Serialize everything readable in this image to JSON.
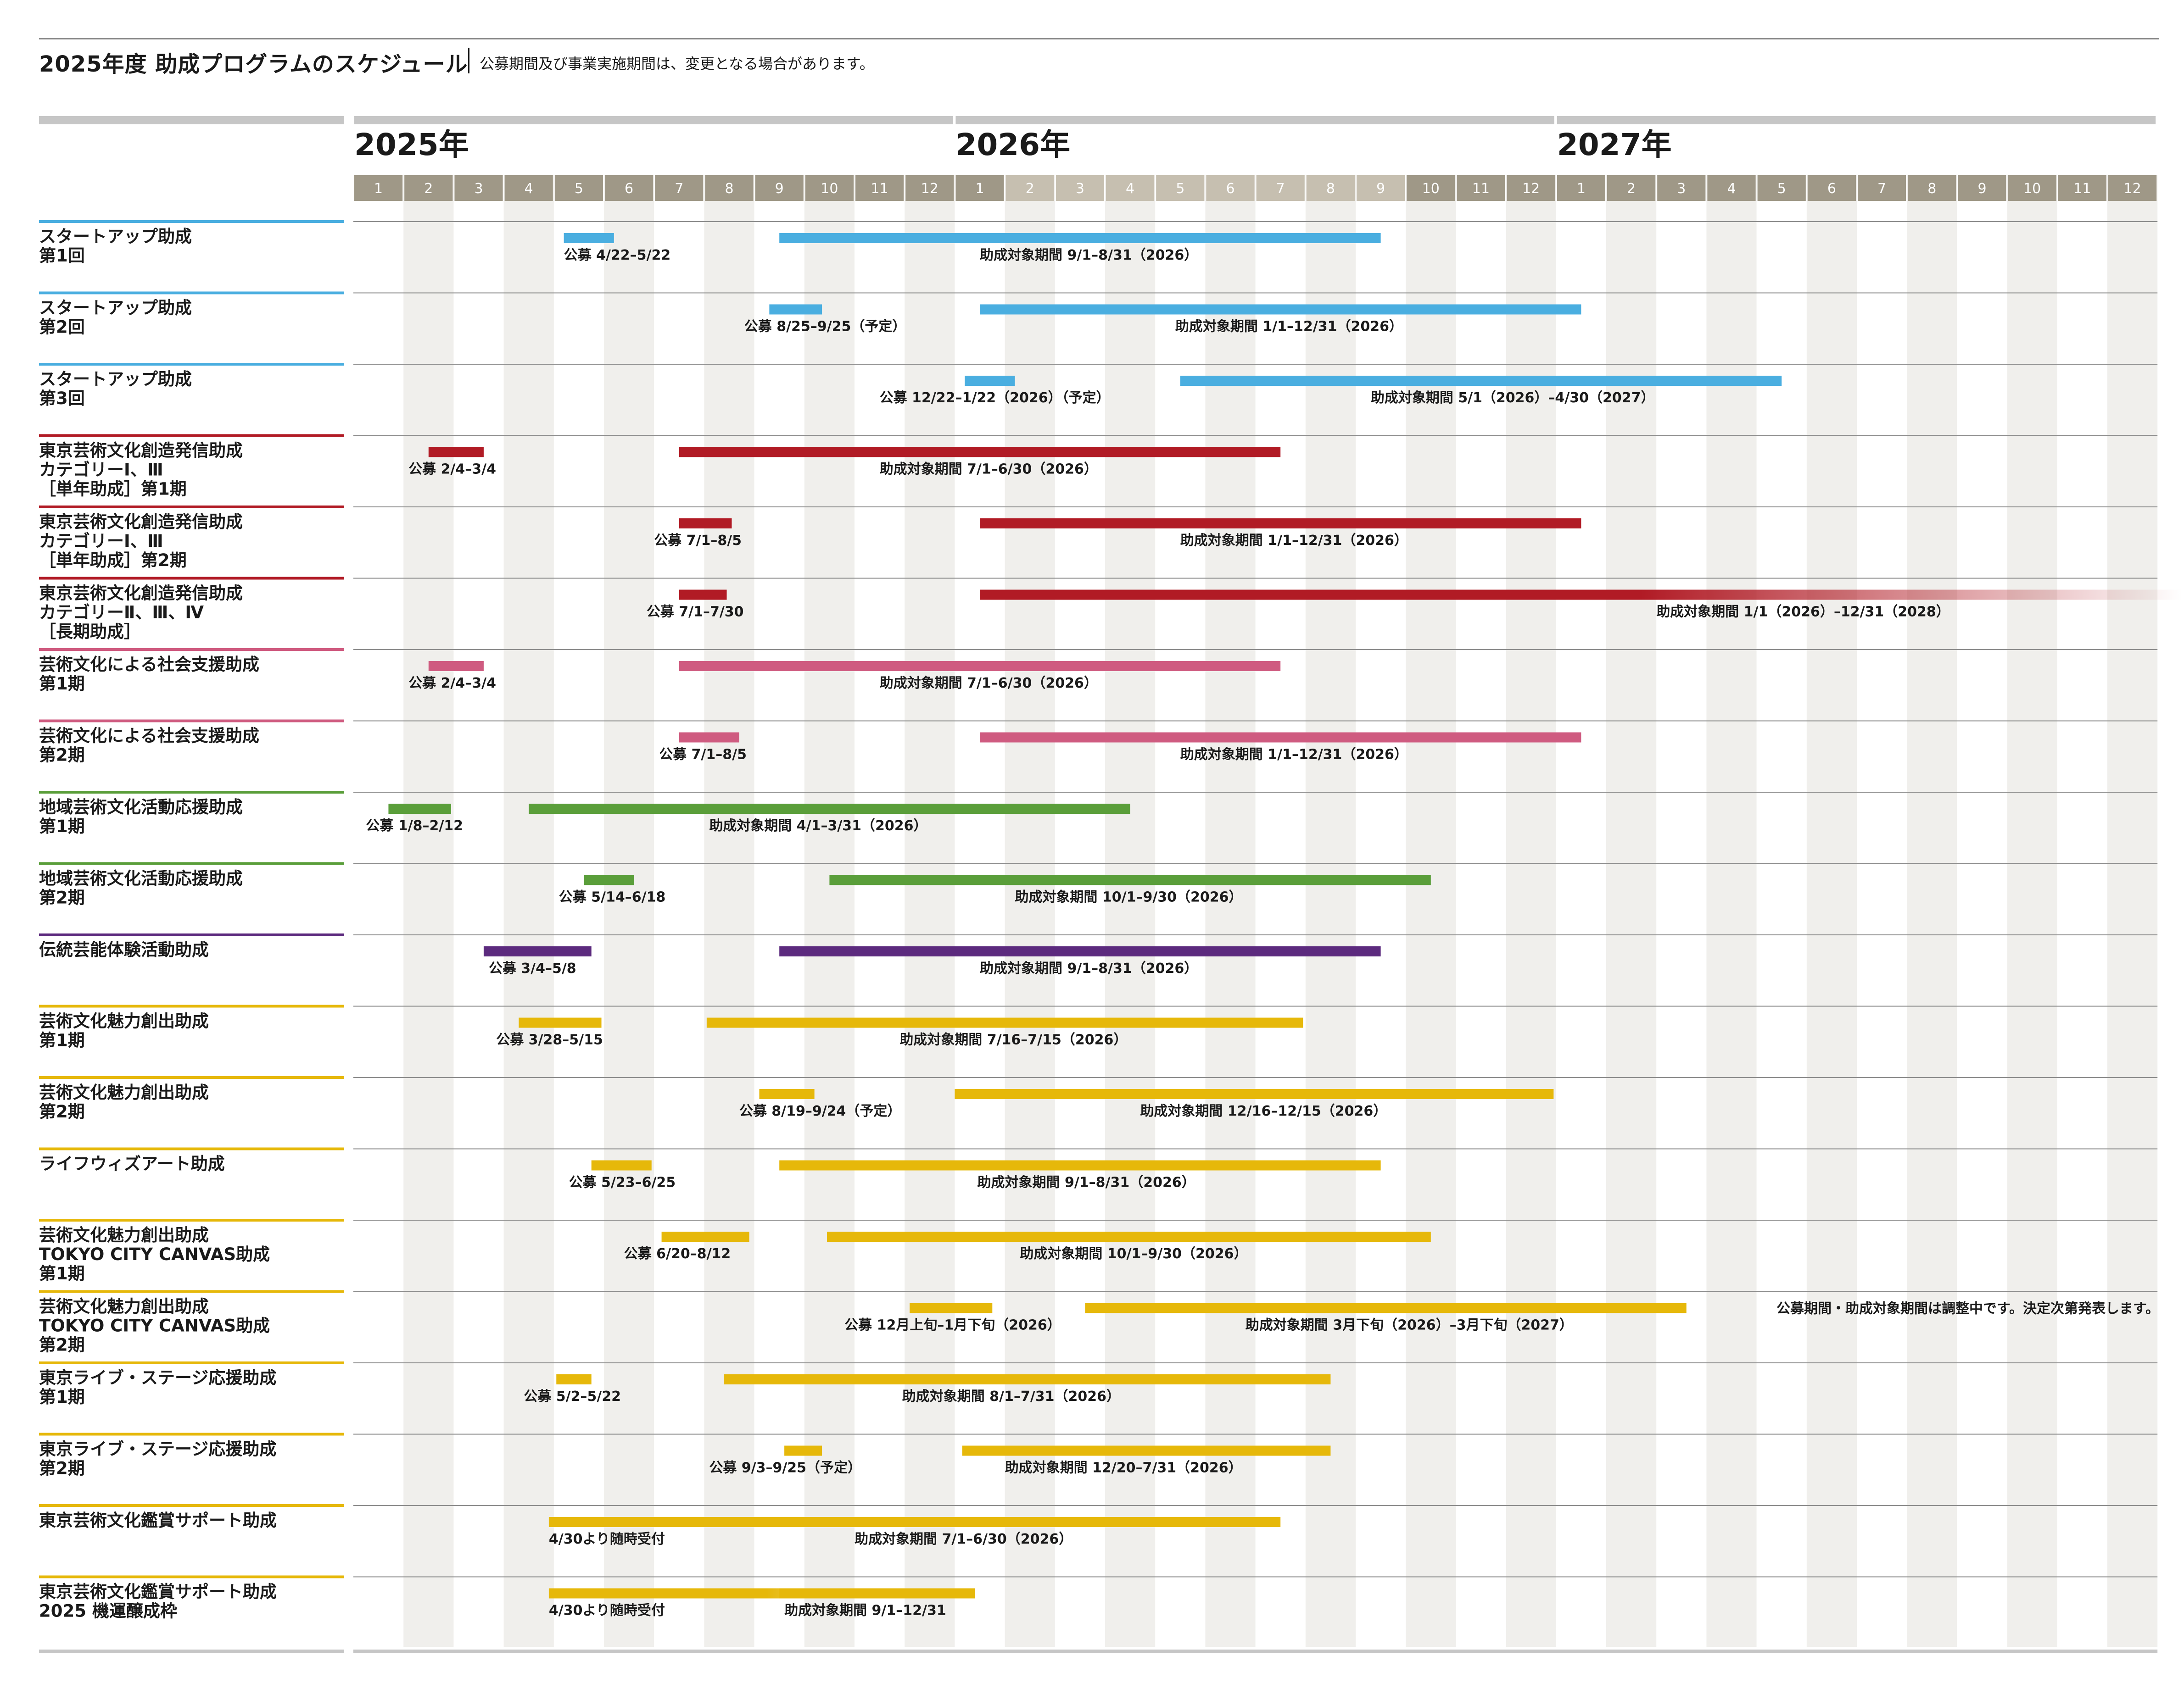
{
  "header": {
    "title": "2025年度 助成プログラムのスケジュール",
    "note": "公募期間及び事業実施期間は、変更となる場合があります。"
  },
  "chart_data": {
    "type": "gantt",
    "title": "2025年度 助成プログラムのスケジュール",
    "years": [
      "2025年",
      "2026年",
      "2027年"
    ],
    "months": [
      "1",
      "2",
      "3",
      "4",
      "5",
      "6",
      "7",
      "8",
      "9",
      "10",
      "11",
      "12"
    ],
    "x_range": [
      "2025-01",
      "2027-12"
    ],
    "grid": true,
    "colors": {
      "blue": "#4aaee0",
      "red": "#b11b25",
      "pink": "#cf5b80",
      "green": "#5a9e3a",
      "purple": "#5c2a7e",
      "yellow": "#e6b80a",
      "month_header_dark": "#9f9887",
      "month_header_light": "#c6bfb0",
      "year_rule": "#c6c6c6"
    },
    "rows": [
      {
        "label": [
          "スタートアップ助成",
          "第1回"
        ],
        "color": "blue",
        "bars": [
          {
            "kind": "公募",
            "start": 4.2,
            "end": 5.2,
            "label": "公募 4/22–5/22",
            "label_x": 4.2
          },
          {
            "kind": "事業",
            "start": 8.5,
            "end": 20.5,
            "label": "助成対象期間 9/1–8/31（2026）",
            "label_x": 12.5
          }
        ]
      },
      {
        "label": [
          "スタートアップ助成",
          "第2回"
        ],
        "color": "blue",
        "bars": [
          {
            "kind": "公募",
            "start": 8.3,
            "end": 9.35,
            "label": "公募 8/25–9/25（予定）",
            "label_x": 7.8
          },
          {
            "kind": "事業",
            "start": 12.5,
            "end": 24.5,
            "label": "助成対象期間 1/1–12/31（2026）",
            "label_x": 16.4
          }
        ]
      },
      {
        "label": [
          "スタートアップ助成",
          "第3回"
        ],
        "color": "blue",
        "bars": [
          {
            "kind": "公募",
            "start": 12.2,
            "end": 13.2,
            "label": "公募 12/22–1/22（2026）（予定）",
            "label_x": 10.5
          },
          {
            "kind": "事業",
            "start": 16.5,
            "end": 28.5,
            "label": "助成対象期間 5/1（2026）–4/30（2027）",
            "label_x": 20.3
          }
        ]
      },
      {
        "label": [
          "東京芸術文化創造発信助成",
          "カテゴリーⅠ、Ⅲ",
          "［単年助成］第1期"
        ],
        "color": "red",
        "bars": [
          {
            "kind": "公募",
            "start": 1.5,
            "end": 2.6,
            "label": "公募 2/4–3/4",
            "label_x": 1.1
          },
          {
            "kind": "事業",
            "start": 6.5,
            "end": 18.5,
            "label": "助成対象期間 7/1–6/30（2026）",
            "label_x": 10.5
          }
        ]
      },
      {
        "label": [
          "東京芸術文化創造発信助成",
          "カテゴリーⅠ、Ⅲ",
          "［単年助成］第2期"
        ],
        "color": "red",
        "bars": [
          {
            "kind": "公募",
            "start": 6.5,
            "end": 7.55,
            "label": "公募 7/1–8/5",
            "label_x": 6.0
          },
          {
            "kind": "事業",
            "start": 12.5,
            "end": 24.5,
            "label": "助成対象期間 1/1–12/31（2026）",
            "label_x": 16.5
          }
        ]
      },
      {
        "label": [
          "東京芸術文化創造発信助成",
          "カテゴリーⅡ、Ⅲ、Ⅳ",
          "［長期助成］"
        ],
        "color": "red",
        "bars": [
          {
            "kind": "公募",
            "start": 6.5,
            "end": 7.45,
            "label": "公募 7/1–7/30",
            "label_x": 5.85
          },
          {
            "kind": "事業",
            "start": 12.5,
            "end": 36.5,
            "fade": true,
            "label": "助成対象期間 1/1（2026）–12/31（2028）",
            "label_x": 26.0
          }
        ]
      },
      {
        "label": [
          "芸術文化による社会支援助成",
          "第1期"
        ],
        "color": "pink",
        "bars": [
          {
            "kind": "公募",
            "start": 1.5,
            "end": 2.6,
            "label": "公募 2/4–3/4",
            "label_x": 1.1
          },
          {
            "kind": "事業",
            "start": 6.5,
            "end": 18.5,
            "label": "助成対象期間 7/1–6/30（2026）",
            "label_x": 10.5
          }
        ]
      },
      {
        "label": [
          "芸術文化による社会支援助成",
          "第2期"
        ],
        "color": "pink",
        "bars": [
          {
            "kind": "公募",
            "start": 6.5,
            "end": 7.7,
            "label": "公募 7/1–8/5",
            "label_x": 6.1
          },
          {
            "kind": "事業",
            "start": 12.5,
            "end": 24.5,
            "label": "助成対象期間 1/1–12/31（2026）",
            "label_x": 16.5
          }
        ]
      },
      {
        "label": [
          "地域芸術文化活動応援助成",
          "第1期"
        ],
        "color": "green",
        "bars": [
          {
            "kind": "公募",
            "start": 0.7,
            "end": 1.95,
            "label": "公募 1/8–2/12",
            "label_x": 0.25
          },
          {
            "kind": "事業",
            "start": 3.5,
            "end": 15.5,
            "label": "助成対象期間 4/1–3/31（2026）",
            "label_x": 7.1
          }
        ]
      },
      {
        "label": [
          "地域芸術文化活動応援助成",
          "第2期"
        ],
        "color": "green",
        "bars": [
          {
            "kind": "公募",
            "start": 4.6,
            "end": 5.6,
            "label": "公募 5/14–6/18",
            "label_x": 4.1
          },
          {
            "kind": "事業",
            "start": 9.5,
            "end": 21.5,
            "label": "助成対象期間 10/1–9/30（2026）",
            "label_x": 13.2
          }
        ]
      },
      {
        "label": [
          "伝統芸能体験活動助成"
        ],
        "color": "purple",
        "bars": [
          {
            "kind": "公募",
            "start": 2.6,
            "end": 4.75,
            "label": "公募 3/4–5/8",
            "label_x": 2.7
          },
          {
            "kind": "事業",
            "start": 8.5,
            "end": 20.5,
            "label": "助成対象期間 9/1–8/31（2026）",
            "label_x": 12.5
          }
        ]
      },
      {
        "label": [
          "芸術文化魅力創出助成",
          "第1期"
        ],
        "color": "yellow",
        "bars": [
          {
            "kind": "公募",
            "start": 3.3,
            "end": 4.95,
            "label": "公募 3/28–5/15",
            "label_x": 2.85
          },
          {
            "kind": "事業",
            "start": 7.05,
            "end": 18.95,
            "label": "助成対象期間 7/16–7/15（2026）",
            "label_x": 10.9
          }
        ]
      },
      {
        "label": [
          "芸術文化魅力創出助成",
          "第2期"
        ],
        "color": "yellow",
        "bars": [
          {
            "kind": "公募",
            "start": 8.1,
            "end": 9.2,
            "label": "公募 8/19–9/24（予定）",
            "label_x": 7.7
          },
          {
            "kind": "事業",
            "start": 12.0,
            "end": 23.95,
            "label": "助成対象期間 12/16–12/15（2026）",
            "label_x": 15.7
          }
        ]
      },
      {
        "label": [
          "ライフウィズアート助成"
        ],
        "color": "yellow",
        "bars": [
          {
            "kind": "公募",
            "start": 4.75,
            "end": 5.95,
            "label": "公募 5/23–6/25",
            "label_x": 4.3
          },
          {
            "kind": "事業",
            "start": 8.5,
            "end": 20.5,
            "label": "助成対象期間 9/1–8/31（2026）",
            "label_x": 12.45
          }
        ]
      },
      {
        "label": [
          "芸術文化魅力創出助成",
          "TOKYO CITY CANVAS助成",
          "第1期"
        ],
        "color": "yellow",
        "bars": [
          {
            "kind": "公募",
            "start": 6.15,
            "end": 7.9,
            "label": "公募 6/20–8/12",
            "label_x": 5.4
          },
          {
            "kind": "事業",
            "start": 9.45,
            "end": 21.5,
            "label": "助成対象期間 10/1–9/30（2026）",
            "label_x": 13.3
          }
        ]
      },
      {
        "label": [
          "芸術文化魅力創出助成",
          "TOKYO CITY CANVAS助成",
          "第2期"
        ],
        "color": "yellow",
        "bars": [
          {
            "kind": "公募",
            "start": 11.1,
            "end": 12.75,
            "label": "公募 12月上旬–1月下旬（2026）",
            "label_x": 9.8
          },
          {
            "kind": "事業",
            "start": 14.6,
            "end": 26.6,
            "label": "助成対象期間 3月下旬（2026）–3月下旬（2027）",
            "label_x": 17.8
          }
        ],
        "note": "公募期間・助成対象期間は調整中です。決定次第発表します。"
      },
      {
        "label": [
          "東京ライブ・ステージ応援助成",
          "第1期"
        ],
        "color": "yellow",
        "bars": [
          {
            "kind": "公募",
            "start": 4.05,
            "end": 4.75,
            "label": "公募 5/2–5/22",
            "label_x": 3.4
          },
          {
            "kind": "事業",
            "start": 7.4,
            "end": 19.5,
            "label": "助成対象期間 8/1–7/31（2026）",
            "label_x": 10.95
          }
        ]
      },
      {
        "label": [
          "東京ライブ・ステージ応援助成",
          "第2期"
        ],
        "color": "yellow",
        "bars": [
          {
            "kind": "公募",
            "start": 8.6,
            "end": 9.35,
            "label": "公募 9/3–9/25（予定）",
            "label_x": 7.1
          },
          {
            "kind": "事業",
            "start": 12.15,
            "end": 19.5,
            "label": "助成対象期間 12/20–7/31（2026）",
            "label_x": 13.0
          }
        ]
      },
      {
        "label": [
          "東京芸術文化鑑賞サポート助成"
        ],
        "color": "yellow",
        "bars": [
          {
            "kind": "公募",
            "start": 3.9,
            "end": 13.5,
            "fade": true,
            "label": "4/30より随時受付",
            "label_x": 3.9
          },
          {
            "kind": "事業",
            "start": 6.5,
            "end": 18.5,
            "label": "助成対象期間 7/1–6/30（2026）",
            "label_x": 10.0
          }
        ]
      },
      {
        "label": [
          "東京芸術文化鑑賞サポート助成",
          "2025 機運醸成枠"
        ],
        "color": "yellow",
        "bars": [
          {
            "kind": "公募",
            "start": 3.9,
            "end": 11.8,
            "fade": true,
            "label": "4/30より随時受付",
            "label_x": 3.9
          },
          {
            "kind": "事業",
            "start": 8.5,
            "end": 12.4,
            "label": "助成対象期間 9/1–12/31",
            "label_x": 8.6
          }
        ]
      }
    ]
  }
}
